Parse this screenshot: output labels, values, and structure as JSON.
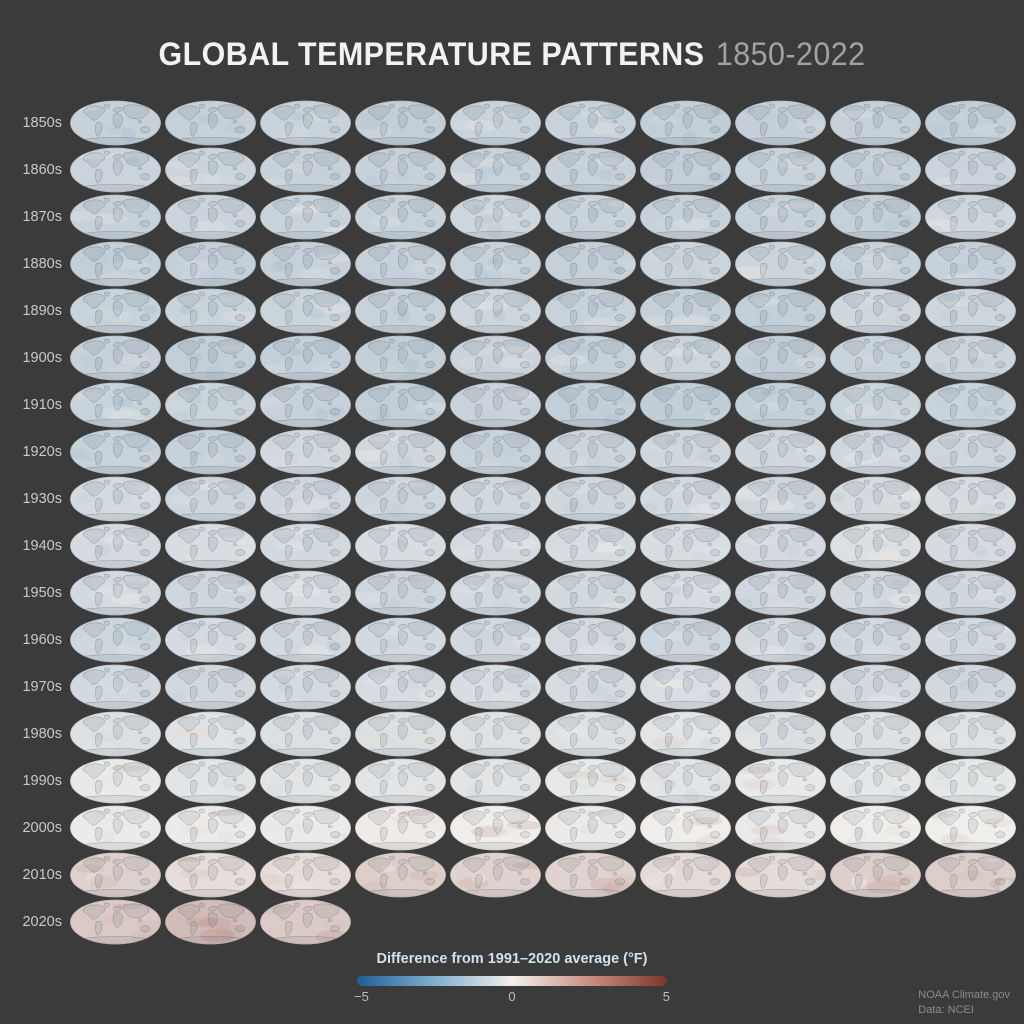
{
  "title": {
    "main": "GLOBAL TEMPERATURE PATTERNS",
    "range": "1850-2022"
  },
  "legend": {
    "label": "Difference from 1991–2020 average (°F)",
    "tick_min": "−5",
    "tick_mid": "0",
    "tick_max": "5"
  },
  "attribution": {
    "line1": "NOAA Climate.gov",
    "line2": "Data: NCEI"
  },
  "colors": {
    "background": "#3b3b3b",
    "title": "#f2f2f2",
    "title_range": "#a2a2a2",
    "decade_label": "#c9c9c9",
    "legend_label": "#cfe2ee",
    "legend_ticks": "#bdbdbd",
    "attribution": "#9a9a9a",
    "scale_blue_dark": "#1f5e94",
    "scale_blue_mid": "#7fafcd",
    "scale_white": "#f2efec",
    "scale_red_mid": "#c98f83",
    "scale_red_dark": "#7e352c"
  },
  "chart_data": {
    "type": "heatmap",
    "title": "Global Temperature Patterns 1850-2022",
    "description": "Small-multiples grid of elliptical world maps (one globe per year, 1850 through 2022), ten per row, each row one decade. Color of each map shows annual temperature anomaly versus the 1991–2020 average; early decades are pale blue (cooler), recent decades fade to white and pink-red (warmer).",
    "legend_label": "Difference from 1991–2020 average (°F)",
    "scale_range": [
      -5,
      5
    ],
    "grid": {
      "globes_per_full_row": 10,
      "total_maps": 173
    },
    "rows": [
      {
        "decade": "1850s",
        "start_year": 1850,
        "count": 10,
        "mean_anomaly_f": -1.7
      },
      {
        "decade": "1860s",
        "start_year": 1860,
        "count": 10,
        "mean_anomaly_f": -1.7
      },
      {
        "decade": "1870s",
        "start_year": 1870,
        "count": 10,
        "mean_anomaly_f": -1.6
      },
      {
        "decade": "1880s",
        "start_year": 1880,
        "count": 10,
        "mean_anomaly_f": -1.7
      },
      {
        "decade": "1890s",
        "start_year": 1890,
        "count": 10,
        "mean_anomaly_f": -1.6
      },
      {
        "decade": "1900s",
        "start_year": 1900,
        "count": 10,
        "mean_anomaly_f": -1.7
      },
      {
        "decade": "1910s",
        "start_year": 1910,
        "count": 10,
        "mean_anomaly_f": -1.7
      },
      {
        "decade": "1920s",
        "start_year": 1920,
        "count": 10,
        "mean_anomaly_f": -1.5
      },
      {
        "decade": "1930s",
        "start_year": 1930,
        "count": 10,
        "mean_anomaly_f": -1.3
      },
      {
        "decade": "1940s",
        "start_year": 1940,
        "count": 10,
        "mean_anomaly_f": -1.1
      },
      {
        "decade": "1950s",
        "start_year": 1950,
        "count": 10,
        "mean_anomaly_f": -1.3
      },
      {
        "decade": "1960s",
        "start_year": 1960,
        "count": 10,
        "mean_anomaly_f": -1.3
      },
      {
        "decade": "1970s",
        "start_year": 1970,
        "count": 10,
        "mean_anomaly_f": -1.2
      },
      {
        "decade": "1980s",
        "start_year": 1980,
        "count": 10,
        "mean_anomaly_f": -0.8
      },
      {
        "decade": "1990s",
        "start_year": 1990,
        "count": 10,
        "mean_anomaly_f": -0.5
      },
      {
        "decade": "2000s",
        "start_year": 2000,
        "count": 10,
        "mean_anomaly_f": -0.1
      },
      {
        "decade": "2010s",
        "start_year": 2010,
        "count": 10,
        "mean_anomaly_f": 0.4
      },
      {
        "decade": "2020s",
        "start_year": 2020,
        "count": 3,
        "mean_anomaly_f": 0.8
      }
    ]
  }
}
